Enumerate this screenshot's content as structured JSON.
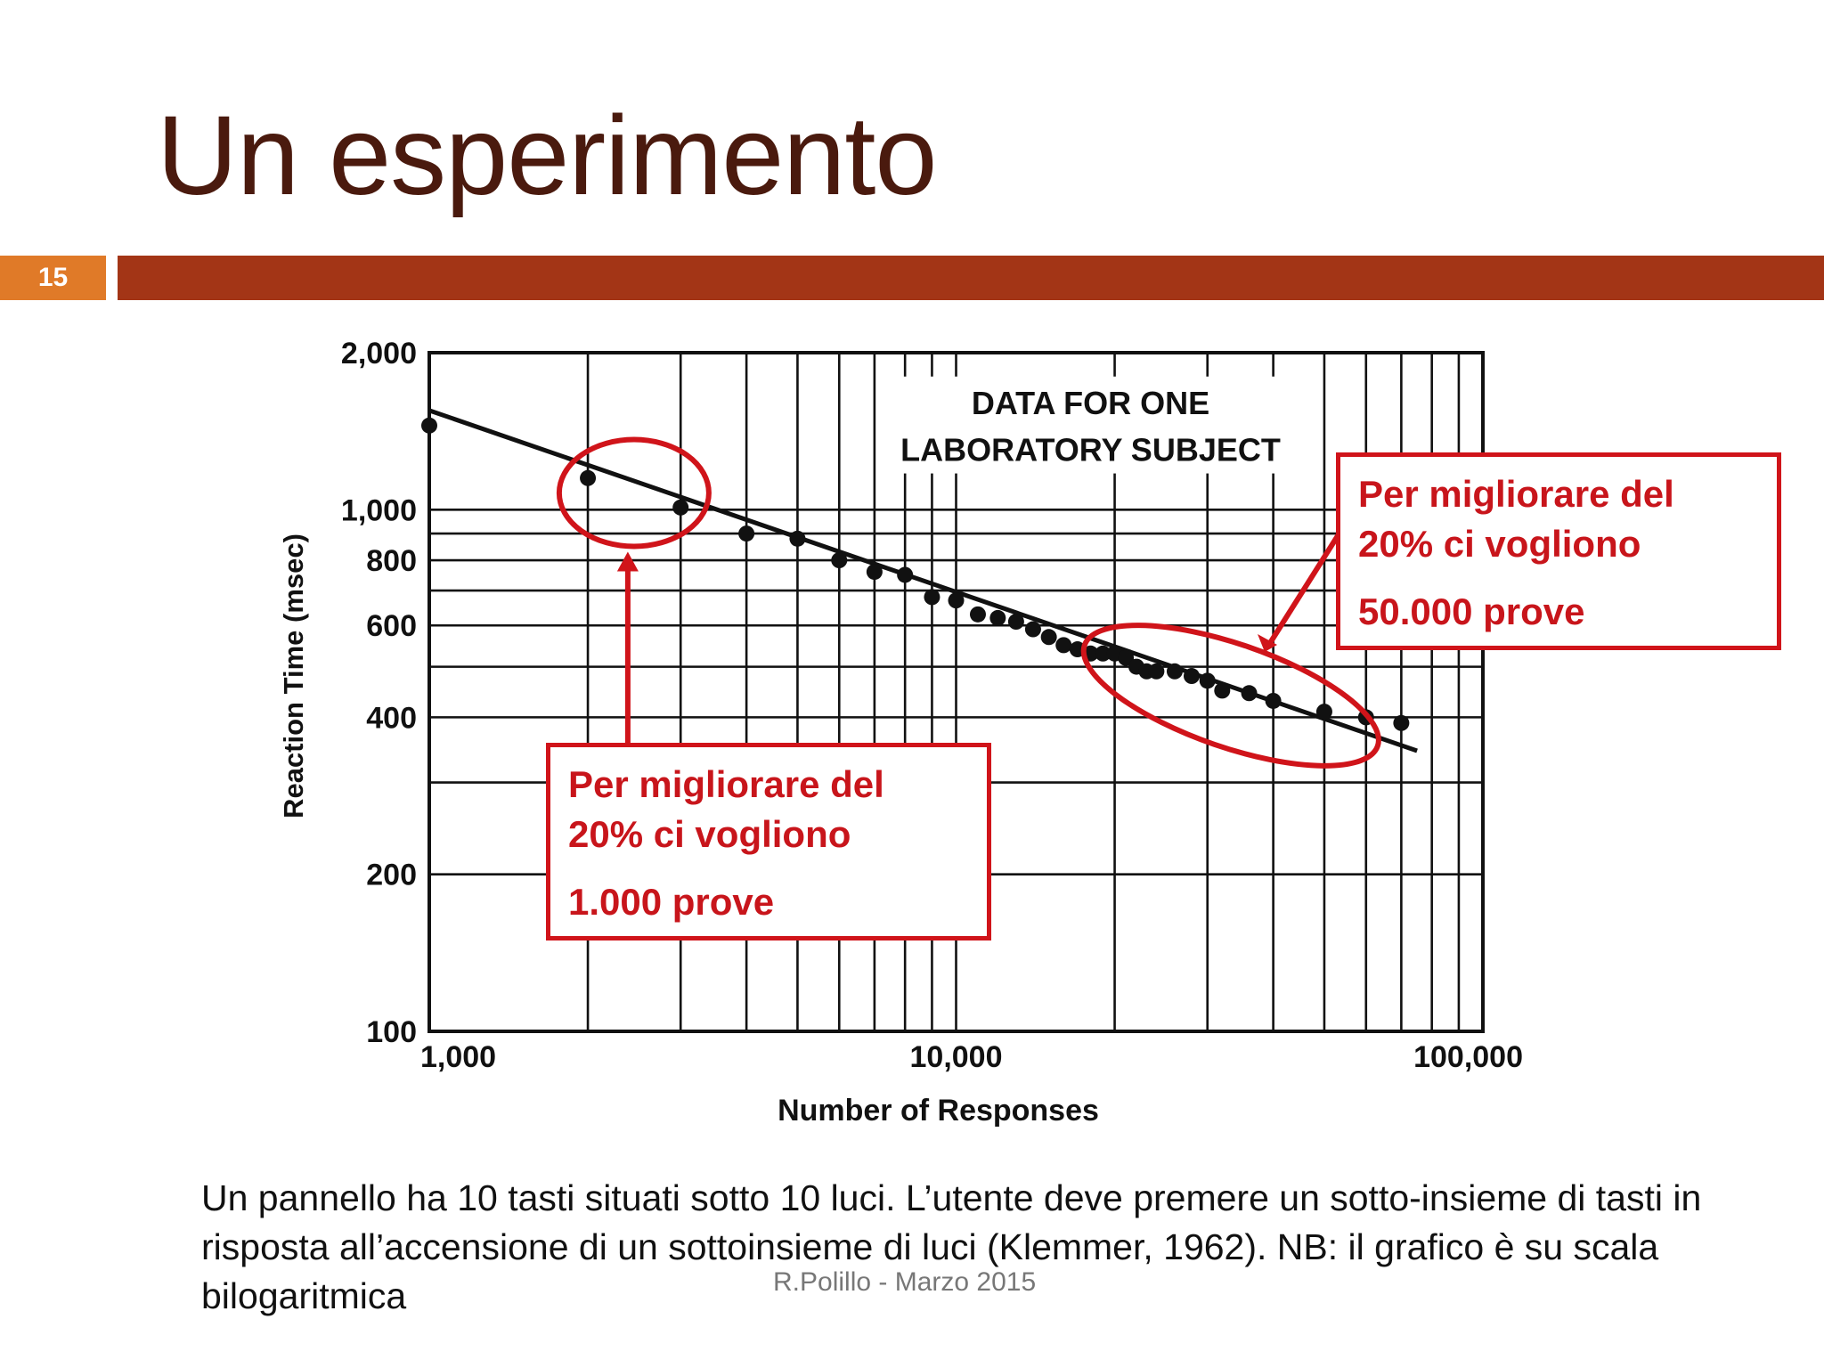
{
  "slide": {
    "title": "Un esperimento",
    "number": "15",
    "caption": "Un pannello ha 10 tasti situati sotto 10 luci. L’utente deve premere un sotto-insieme di tasti in risposta all’accensione di un sottoinsieme di luci (Klemmer, 1962). NB: il grafico è su scala bilogaritmica",
    "footer": "R.Polillo -  Marzo 2015",
    "colors": {
      "title": "#4a1a0e",
      "bar": "#a33516",
      "number_box": "#e07a28",
      "callout": "#d0141a"
    }
  },
  "callouts": [
    {
      "line1": "Per migliorare del",
      "line2": "20% ci vogliono",
      "line3": "1.000 prove"
    },
    {
      "line1": "Per migliorare del",
      "line2": "20% ci vogliono",
      "line3": "50.000 prove"
    }
  ],
  "chart_data": {
    "type": "scatter",
    "scale": "log-log",
    "annotation": [
      "DATA FOR ONE",
      "LABORATORY SUBJECT"
    ],
    "xlabel": "Number of Responses",
    "ylabel": "Reaction Time (msec)",
    "xlim": [
      1000,
      100000
    ],
    "ylim": [
      100,
      2000
    ],
    "x_ticks": [
      {
        "value": 1000,
        "label": "1,000"
      },
      {
        "value": 10000,
        "label": "10,000"
      },
      {
        "value": 100000,
        "label": "100,000"
      }
    ],
    "y_ticks": [
      {
        "value": 2000,
        "label": "2,000"
      },
      {
        "value": 1000,
        "label": "1,000"
      },
      {
        "value": 800,
        "label": "800"
      },
      {
        "value": 600,
        "label": "600"
      },
      {
        "value": 400,
        "label": "400"
      },
      {
        "value": 200,
        "label": "200"
      },
      {
        "value": 100,
        "label": "100"
      }
    ],
    "grid": true,
    "points": [
      {
        "x": 1000,
        "y": 1450
      },
      {
        "x": 2000,
        "y": 1150
      },
      {
        "x": 3000,
        "y": 1010
      },
      {
        "x": 4000,
        "y": 900
      },
      {
        "x": 5000,
        "y": 880
      },
      {
        "x": 6000,
        "y": 800
      },
      {
        "x": 7000,
        "y": 760
      },
      {
        "x": 8000,
        "y": 750
      },
      {
        "x": 9000,
        "y": 680
      },
      {
        "x": 10000,
        "y": 670
      },
      {
        "x": 11000,
        "y": 630
      },
      {
        "x": 12000,
        "y": 620
      },
      {
        "x": 13000,
        "y": 610
      },
      {
        "x": 14000,
        "y": 590
      },
      {
        "x": 15000,
        "y": 570
      },
      {
        "x": 16000,
        "y": 550
      },
      {
        "x": 17000,
        "y": 540
      },
      {
        "x": 18000,
        "y": 530
      },
      {
        "x": 19000,
        "y": 530
      },
      {
        "x": 20000,
        "y": 530
      },
      {
        "x": 21000,
        "y": 520
      },
      {
        "x": 22000,
        "y": 500
      },
      {
        "x": 23000,
        "y": 490
      },
      {
        "x": 24000,
        "y": 490
      },
      {
        "x": 26000,
        "y": 490
      },
      {
        "x": 28000,
        "y": 480
      },
      {
        "x": 30000,
        "y": 470
      },
      {
        "x": 32000,
        "y": 450
      },
      {
        "x": 36000,
        "y": 445
      },
      {
        "x": 40000,
        "y": 430
      },
      {
        "x": 50000,
        "y": 410
      },
      {
        "x": 60000,
        "y": 400
      },
      {
        "x": 70000,
        "y": 390
      }
    ],
    "fit_line": [
      {
        "x": 1000,
        "y": 1550
      },
      {
        "x": 75000,
        "y": 345
      }
    ],
    "highlights": [
      {
        "x": 2400,
        "y": 1060,
        "label_ref": 0
      },
      {
        "x": 32000,
        "y": 430,
        "label_ref": 1
      }
    ]
  }
}
